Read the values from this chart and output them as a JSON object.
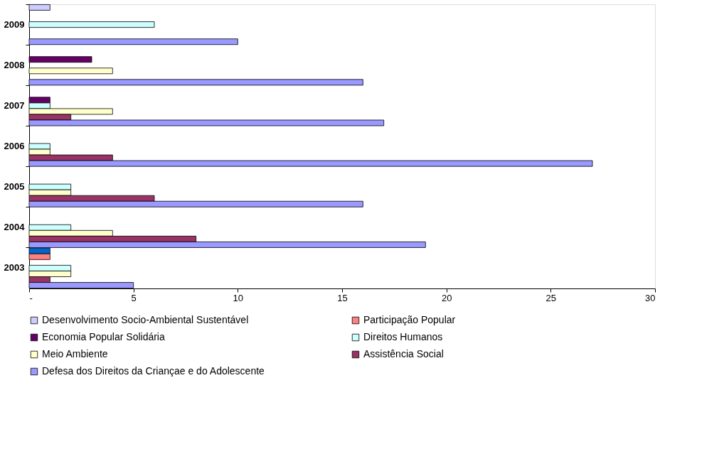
{
  "chart_data": {
    "type": "bar",
    "orientation": "horizontal",
    "categories": [
      "2009",
      "2008",
      "2007",
      "2006",
      "2005",
      "2004",
      "2003"
    ],
    "series": [
      {
        "name": "Desenvolvimento Socio-Ambiental  Sustentável",
        "color": "#ccccff",
        "colors": [
          "#ccccff",
          null,
          null,
          null,
          null,
          null,
          "#0066cc"
        ],
        "values": [
          1,
          null,
          null,
          null,
          null,
          null,
          1
        ]
      },
      {
        "name": "Participação Popular",
        "color": "#ff8080",
        "values": [
          null,
          null,
          null,
          null,
          null,
          null,
          1
        ]
      },
      {
        "name": "Economia Popular Solidária",
        "color": "#660066",
        "values": [
          null,
          3,
          1,
          null,
          null,
          null,
          null
        ]
      },
      {
        "name": "Direitos Humanos",
        "color": "#ccffff",
        "values": [
          6,
          null,
          1,
          1,
          2,
          2,
          2
        ]
      },
      {
        "name": "Meio Ambiente",
        "color": "#ffffcc",
        "values": [
          null,
          4,
          4,
          1,
          2,
          4,
          2
        ]
      },
      {
        "name": "Assistência Social",
        "color": "#993366",
        "values": [
          null,
          null,
          2,
          4,
          6,
          8,
          1
        ]
      },
      {
        "name": "Defesa dos Direitos da Criançae e do Adolescente",
        "color": "#9999ff",
        "values": [
          10,
          16,
          17,
          27,
          16,
          19,
          5
        ]
      }
    ],
    "xlim": [
      0,
      30
    ],
    "xticks": [
      {
        "value": 0,
        "label": "-"
      },
      5,
      10,
      15,
      20,
      25,
      30
    ],
    "grid": false,
    "legend": "bottom"
  }
}
